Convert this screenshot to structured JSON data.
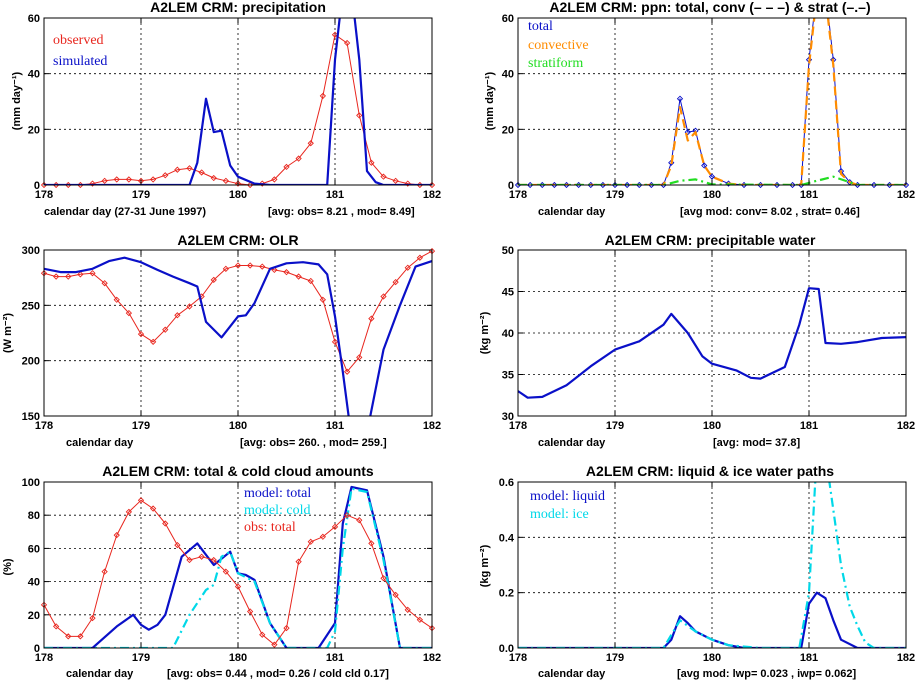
{
  "chart_data": [
    {
      "type": "line",
      "title": "A2LEM CRM: precipitation",
      "xlabel": "calendar day (27-31 June 1997)",
      "ylabel": "(mm day⁻¹)",
      "xlim": [
        178,
        182
      ],
      "ylim": [
        0,
        60
      ],
      "xticks": [
        "178",
        "179",
        "180",
        "181",
        "182"
      ],
      "yticks": [
        "0",
        "20",
        "40",
        "60"
      ],
      "grid": true,
      "legend_position": "top-left",
      "annotation": "[avg: obs=  8.21 , mod=  8.49]",
      "series": [
        {
          "name": "observed",
          "color": "#e8261e",
          "style": "solid",
          "markers": true,
          "x": [
            178.0,
            178.125,
            178.25,
            178.375,
            178.5,
            178.625,
            178.75,
            178.875,
            179.0,
            179.125,
            179.25,
            179.375,
            179.5,
            179.625,
            179.75,
            179.875,
            180.0,
            180.125,
            180.25,
            180.375,
            180.5,
            180.625,
            180.75,
            180.875,
            181.0,
            181.125,
            181.25,
            181.375,
            181.5,
            181.625,
            181.75,
            181.875,
            182.0
          ],
          "y": [
            0,
            0,
            0,
            0,
            0.5,
            1.5,
            2,
            2,
            1.5,
            2,
            3.5,
            5.5,
            6,
            4.5,
            2.5,
            1.5,
            0.5,
            0,
            0.5,
            2,
            6.5,
            9.5,
            15,
            32,
            54,
            51,
            25,
            8,
            3,
            1.5,
            0.5,
            0,
            0
          ]
        },
        {
          "name": "simulated",
          "color": "#0a10c8",
          "style": "solid",
          "markers": false,
          "x": [
            178.0,
            178.5,
            179.0,
            179.25,
            179.5,
            179.58,
            179.67,
            179.75,
            179.83,
            179.92,
            180.0,
            180.17,
            180.33,
            180.5,
            180.75,
            180.92,
            181.0,
            181.08,
            181.17,
            181.25,
            181.33,
            181.42,
            181.5,
            182.0
          ],
          "y": [
            0,
            0,
            0,
            0,
            0,
            8,
            31,
            19,
            19.5,
            7,
            3,
            0.5,
            0,
            0,
            0,
            0,
            45,
            70,
            70,
            45,
            5,
            1,
            0,
            0
          ]
        }
      ]
    },
    {
      "type": "line",
      "title": "A2LEM CRM: ppn: total, conv (– – –) & strat (–.–)",
      "xlabel": "calendar day",
      "ylabel": "(mm day⁻¹)",
      "xlim": [
        178,
        182
      ],
      "ylim": [
        0,
        60
      ],
      "xticks": [
        "178",
        "179",
        "180",
        "181",
        "182"
      ],
      "yticks": [
        "0",
        "20",
        "40",
        "60"
      ],
      "grid": true,
      "legend_position": "top-left",
      "annotation": "[avg mod: conv=  8.02 , strat=  0.46]",
      "series": [
        {
          "name": "total",
          "color": "#0a10c8",
          "style": "solid",
          "markers": true,
          "x": [
            178.0,
            178.125,
            178.25,
            178.375,
            178.5,
            178.625,
            178.75,
            178.875,
            179.0,
            179.125,
            179.25,
            179.375,
            179.5,
            179.58,
            179.67,
            179.75,
            179.83,
            179.92,
            180.0,
            180.17,
            180.33,
            180.5,
            180.67,
            180.83,
            180.92,
            181.0,
            181.08,
            181.17,
            181.25,
            181.33,
            181.42,
            181.5,
            181.67,
            181.83,
            182.0
          ],
          "y": [
            0,
            0,
            0,
            0,
            0,
            0,
            0,
            0,
            0,
            0,
            0,
            0,
            0,
            8,
            31,
            19,
            19.5,
            7,
            3,
            0.5,
            0,
            0,
            0,
            0,
            0,
            45,
            70,
            70,
            45,
            5,
            1,
            0,
            0,
            0,
            0
          ]
        },
        {
          "name": "convective",
          "color": "#ff8c00",
          "style": "dashed",
          "markers": false,
          "x": [
            178.0,
            179.5,
            179.58,
            179.67,
            179.75,
            179.83,
            179.92,
            180.0,
            180.17,
            180.33,
            180.92,
            181.0,
            181.08,
            181.17,
            181.25,
            181.33,
            181.42,
            181.5,
            182.0
          ],
          "y": [
            0,
            0,
            7,
            28,
            16,
            19,
            7,
            3,
            0.5,
            0,
            0,
            43,
            68,
            68,
            43,
            4,
            1,
            0,
            0
          ]
        },
        {
          "name": "stratiform",
          "color": "#22dd22",
          "style": "dashdot",
          "markers": false,
          "x": [
            178.0,
            179.5,
            179.67,
            179.83,
            180.0,
            180.92,
            181.08,
            181.25,
            181.42,
            181.5,
            182.0
          ],
          "y": [
            0,
            0,
            1.5,
            2,
            0.2,
            0,
            1.5,
            3,
            1,
            0,
            0
          ]
        }
      ]
    },
    {
      "type": "line",
      "title": "A2LEM CRM: OLR",
      "xlabel": "calendar day",
      "ylabel": "(W m⁻²)",
      "xlim": [
        178,
        182
      ],
      "ylim": [
        150,
        300
      ],
      "xticks": [
        "178",
        "179",
        "180",
        "181",
        "182"
      ],
      "yticks": [
        "150",
        "200",
        "250",
        "300"
      ],
      "grid": true,
      "annotation": "[avg: obs=  260. , mod=  259.]",
      "series": [
        {
          "name": "observed",
          "color": "#e8261e",
          "style": "solid",
          "markers": true,
          "x": [
            178.0,
            178.125,
            178.25,
            178.375,
            178.5,
            178.625,
            178.75,
            178.875,
            179.0,
            179.125,
            179.25,
            179.375,
            179.5,
            179.625,
            179.75,
            179.875,
            180.0,
            180.125,
            180.25,
            180.375,
            180.5,
            180.625,
            180.75,
            180.875,
            181.0,
            181.125,
            181.25,
            181.375,
            181.5,
            181.625,
            181.75,
            181.875,
            182.0
          ],
          "y": [
            279,
            276,
            276,
            278,
            279,
            270,
            255,
            243,
            224,
            217,
            228,
            241,
            249,
            258,
            273,
            283,
            286,
            286,
            285,
            282,
            280,
            276,
            272,
            255,
            217,
            190,
            203,
            238,
            258,
            271,
            284,
            293,
            299
          ]
        },
        {
          "name": "simulated",
          "color": "#0a10c8",
          "style": "solid",
          "markers": false,
          "x": [
            178.0,
            178.17,
            178.33,
            178.5,
            178.67,
            178.83,
            179.0,
            179.17,
            179.33,
            179.5,
            179.58,
            179.67,
            179.83,
            180.0,
            180.08,
            180.17,
            180.33,
            180.5,
            180.67,
            180.83,
            180.92,
            181.0,
            181.08,
            181.17,
            181.33,
            181.5,
            181.67,
            181.83,
            182.0
          ],
          "y": [
            283,
            280,
            280,
            283,
            290,
            293,
            289,
            282,
            276,
            270,
            267,
            235,
            221,
            240,
            241,
            252,
            283,
            288,
            289,
            287,
            278,
            240,
            190,
            130,
            135,
            210,
            250,
            285,
            290
          ]
        }
      ]
    },
    {
      "type": "line",
      "title": "A2LEM CRM: precipitable water",
      "xlabel": "calendar day",
      "ylabel": "(kg m⁻²)",
      "xlim": [
        178,
        182
      ],
      "ylim": [
        30,
        50
      ],
      "xticks": [
        "178",
        "179",
        "180",
        "181",
        "182"
      ],
      "yticks": [
        "30",
        "35",
        "40",
        "45",
        "50"
      ],
      "grid": true,
      "annotation": "[avg: mod=  37.8]",
      "series": [
        {
          "name": "model",
          "color": "#0a10c8",
          "style": "solid",
          "markers": false,
          "x": [
            178.0,
            178.1,
            178.25,
            178.5,
            178.75,
            179.0,
            179.25,
            179.5,
            179.58,
            179.75,
            179.9,
            180.0,
            180.25,
            180.4,
            180.5,
            180.75,
            180.9,
            181.0,
            181.1,
            181.17,
            181.33,
            181.5,
            181.75,
            182.0
          ],
          "y": [
            33,
            32.2,
            32.3,
            33.7,
            36,
            38,
            39,
            41,
            42.3,
            40,
            37.2,
            36.3,
            35.5,
            34.6,
            34.5,
            35.9,
            41,
            45.4,
            45.3,
            38.8,
            38.7,
            38.9,
            39.4,
            39.5
          ]
        }
      ]
    },
    {
      "type": "line",
      "title": "A2LEM CRM: total & cold cloud amounts",
      "xlabel": "calendar day",
      "ylabel": "(%)",
      "xlim": [
        178,
        182
      ],
      "ylim": [
        0,
        100
      ],
      "xticks": [
        "178",
        "179",
        "180",
        "181",
        "182"
      ],
      "yticks": [
        "0",
        "20",
        "40",
        "60",
        "80",
        "100"
      ],
      "grid": true,
      "legend_position": "top-right",
      "annotation": "[avg: obs=  0.44 , mod=  0.26 / cold cld  0.17]",
      "series": [
        {
          "name": "model: total",
          "color": "#0a10c8",
          "style": "solid",
          "markers": false,
          "x": [
            178.0,
            178.5,
            178.75,
            178.92,
            179.0,
            179.08,
            179.17,
            179.25,
            179.42,
            179.58,
            179.75,
            179.92,
            180.0,
            180.08,
            180.17,
            180.33,
            180.5,
            180.67,
            180.83,
            181.0,
            181.08,
            181.17,
            181.33,
            181.5,
            181.67,
            182.0
          ],
          "y": [
            0,
            0,
            13,
            20,
            14,
            11,
            14,
            20,
            55,
            63,
            50,
            58,
            45,
            44,
            41,
            15,
            0,
            0,
            0,
            15,
            75,
            97,
            95,
            55,
            0,
            0
          ]
        },
        {
          "name": "model: cold",
          "color": "#00d8e8",
          "style": "dashdot",
          "markers": false,
          "x": [
            178.0,
            179.17,
            179.33,
            179.5,
            179.67,
            179.75,
            179.83,
            179.92,
            180.0,
            180.17,
            180.33,
            180.5,
            180.92,
            181.0,
            181.08,
            181.17,
            181.33,
            181.5,
            181.67,
            182.0
          ],
          "y": [
            0,
            0,
            0,
            20,
            35,
            38,
            55,
            58,
            45,
            40,
            15,
            0,
            0,
            10,
            60,
            96,
            94,
            53,
            0,
            0
          ]
        },
        {
          "name": "obs: total",
          "color": "#e8261e",
          "style": "solid",
          "markers": true,
          "x": [
            178.0,
            178.125,
            178.25,
            178.375,
            178.5,
            178.625,
            178.75,
            178.875,
            179.0,
            179.125,
            179.25,
            179.375,
            179.5,
            179.625,
            179.75,
            179.875,
            180.0,
            180.125,
            180.25,
            180.375,
            180.5,
            180.625,
            180.75,
            180.875,
            181.0,
            181.125,
            181.25,
            181.375,
            181.5,
            181.625,
            181.75,
            181.875,
            182.0
          ],
          "y": [
            26,
            13,
            7,
            7,
            18,
            46,
            68,
            82,
            89,
            84,
            75,
            62,
            53,
            55,
            53,
            46,
            37,
            22,
            8,
            2,
            12,
            52,
            64,
            67,
            73,
            80,
            77,
            63,
            42,
            32,
            23,
            17,
            12
          ]
        }
      ]
    },
    {
      "type": "line",
      "title": "A2LEM CRM: liquid & ice water paths",
      "xlabel": "calendar day",
      "ylabel": "(kg m⁻²)",
      "xlim": [
        178,
        182
      ],
      "ylim": [
        0,
        0.6
      ],
      "xticks": [
        "178",
        "179",
        "180",
        "181",
        "182"
      ],
      "yticks": [
        "0.0",
        "0.2",
        "0.4",
        "0.6"
      ],
      "grid": true,
      "legend_position": "top-left",
      "annotation": "[avg mod: lwp= 0.023 , iwp= 0.062]",
      "series": [
        {
          "name": "model: liquid",
          "color": "#0a10c8",
          "style": "solid",
          "markers": false,
          "x": [
            178.0,
            179.5,
            179.58,
            179.67,
            179.75,
            179.83,
            180.0,
            180.17,
            180.33,
            180.92,
            181.0,
            181.08,
            181.17,
            181.25,
            181.33,
            181.5,
            182.0
          ],
          "y": [
            0,
            0,
            0.03,
            0.115,
            0.09,
            0.06,
            0.03,
            0.01,
            0,
            0,
            0.16,
            0.2,
            0.18,
            0.1,
            0.03,
            0,
            0
          ]
        },
        {
          "name": "model: ice",
          "color": "#00d8e8",
          "style": "dashdot",
          "markers": false,
          "x": [
            178.0,
            179.5,
            179.67,
            179.83,
            180.0,
            180.17,
            180.5,
            180.9,
            181.0,
            181.08,
            181.17,
            181.25,
            181.33,
            181.42,
            181.5,
            181.58,
            181.67,
            182.0
          ],
          "y": [
            0,
            0,
            0.1,
            0.06,
            0.03,
            0.01,
            0,
            0,
            0.2,
            0.7,
            0.7,
            0.5,
            0.3,
            0.15,
            0.08,
            0.02,
            0,
            0
          ]
        }
      ]
    }
  ]
}
